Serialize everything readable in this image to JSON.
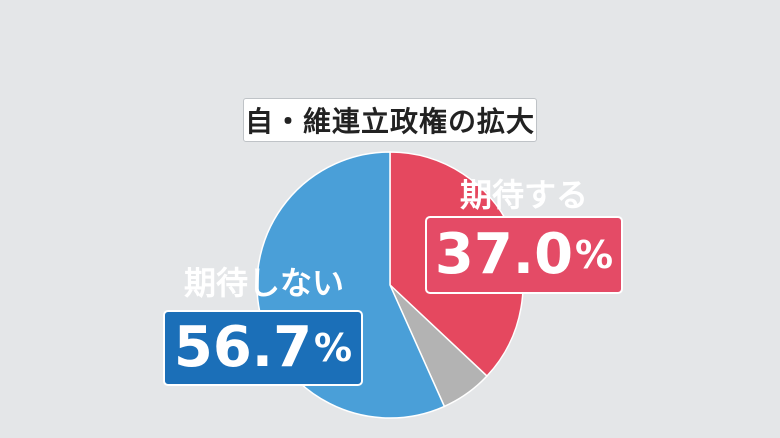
{
  "chart_data": {
    "type": "pie",
    "title": "自・維連立政権の拡大",
    "slices": [
      {
        "label": "期待する",
        "value": 37.0,
        "display": "37.0",
        "color": "#e5485f"
      },
      {
        "label": "",
        "value": 6.3,
        "display": "",
        "color": "#b3b3b3"
      },
      {
        "label": "期待しない",
        "value": 56.7,
        "display": "56.7",
        "color": "#4a9fd8"
      }
    ],
    "unit": "%",
    "start": "12 o'clock",
    "direction": "clockwise",
    "order": [
      "期待する",
      "期待しない",
      "other"
    ]
  }
}
